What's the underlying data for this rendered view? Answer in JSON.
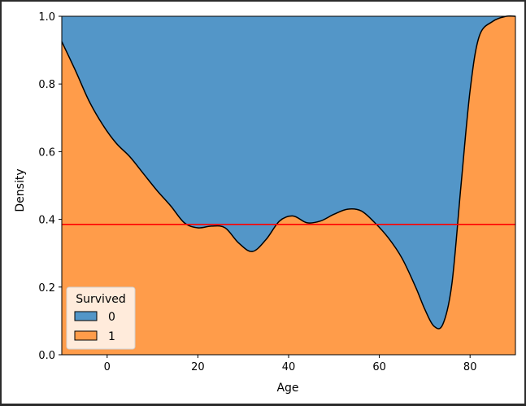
{
  "chart_data": {
    "type": "area",
    "subtype": "stacked-fill-kde",
    "xlabel": "Age",
    "ylabel": "Density",
    "xlim": [
      -10,
      90
    ],
    "ylim": [
      0,
      1
    ],
    "xticks": [
      0,
      20,
      40,
      60,
      80
    ],
    "yticks": [
      0.0,
      0.2,
      0.4,
      0.6,
      0.8,
      1.0
    ],
    "ytick_labels": [
      "0.0",
      "0.2",
      "0.4",
      "0.6",
      "0.8",
      "1.0"
    ],
    "x": [
      -10,
      -7,
      -4,
      -1,
      2,
      5,
      8,
      11,
      14,
      17,
      20,
      23,
      26,
      29,
      32,
      35,
      38,
      41,
      44,
      47,
      50,
      53,
      56,
      59,
      62,
      65,
      68,
      70,
      72,
      74,
      76,
      78,
      80,
      82,
      85,
      88,
      90
    ],
    "series": [
      {
        "name": "1",
        "color": "#ff9c4a",
        "values": [
          0.925,
          0.84,
          0.75,
          0.68,
          0.625,
          0.585,
          0.535,
          0.485,
          0.44,
          0.39,
          0.375,
          0.38,
          0.375,
          0.33,
          0.305,
          0.34,
          0.395,
          0.41,
          0.39,
          0.395,
          0.415,
          0.43,
          0.425,
          0.39,
          0.345,
          0.285,
          0.2,
          0.135,
          0.085,
          0.09,
          0.21,
          0.5,
          0.78,
          0.94,
          0.985,
          1.0,
          1.0
        ]
      },
      {
        "name": "0",
        "color": "#5396c8",
        "values": "remainder to 1.0"
      }
    ],
    "reference_line": {
      "y": 0.385,
      "color": "#ff0000"
    },
    "legend": {
      "title": "Survived",
      "entries": [
        "0",
        "1"
      ],
      "placement": "lower-left"
    }
  }
}
